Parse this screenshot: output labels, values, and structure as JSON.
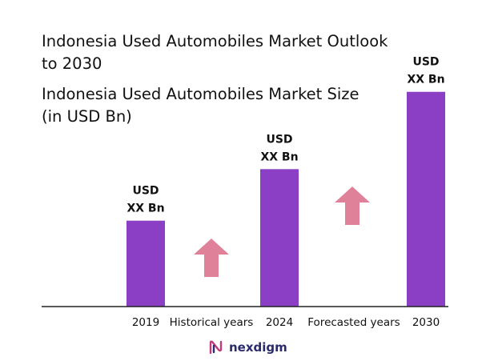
{
  "title": "Indonesia Used Automobiles Market Outlook to 2030",
  "title_lines": [
    "Indonesia Used Automobiles Market Outlook",
    "to 2030"
  ],
  "subtitle_lines": [
    "Indonesia Used Automobiles Market Size",
    "(in USD Bn)"
  ],
  "chart_data": {
    "type": "bar",
    "title": "Indonesia Used Automobiles Market Outlook to 2030",
    "subtitle": "Indonesia Used Automobiles Market Size (in USD Bn)",
    "categories": [
      "2019",
      "2024",
      "2030"
    ],
    "values": [
      1,
      1.6,
      2.5
    ],
    "data_labels": [
      [
        "USD",
        "XX Bn"
      ],
      [
        "USD",
        "XX Bn"
      ],
      [
        "USD",
        "XX Bn"
      ]
    ],
    "annotations": [
      "Historical years",
      "Forecasted years"
    ],
    "ylim": [
      0,
      2.6
    ],
    "grid": false,
    "bar_color": "#8a3fc4",
    "arrow_color": "#e0819a"
  },
  "logo": {
    "text": "nexdigm",
    "icon": "nexdigm-logo-icon",
    "color": "#2a2a6e",
    "accent": "#c0397a"
  }
}
